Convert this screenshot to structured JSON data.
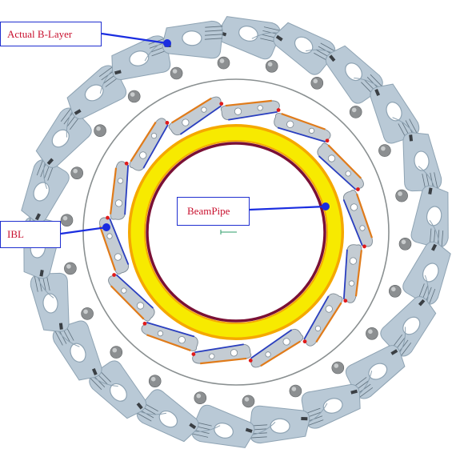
{
  "labels": {
    "actual_b_layer": "Actual B-Layer",
    "ibl": "IBL",
    "beampipe": "BeamPipe"
  },
  "colors": {
    "stave_fill": "#b9c9d6",
    "stave_stroke": "#8ea3b3",
    "ibl_stave_fill": "#c4ccd3",
    "ibl_orange": "#e07b1a",
    "ibl_blue": "#2a3fbf",
    "beampipe_yellow": "#f7ea00",
    "beampipe_orange": "#f5a800",
    "beampipe_inner": "#7a1035",
    "support_ring": "#8a9091",
    "cooling_ball": "#8c8f91",
    "callout": "#1a2de0",
    "label_text": "#c8102e"
  },
  "counts": {
    "b_layer_staves": 22,
    "ibl_staves": 14
  }
}
